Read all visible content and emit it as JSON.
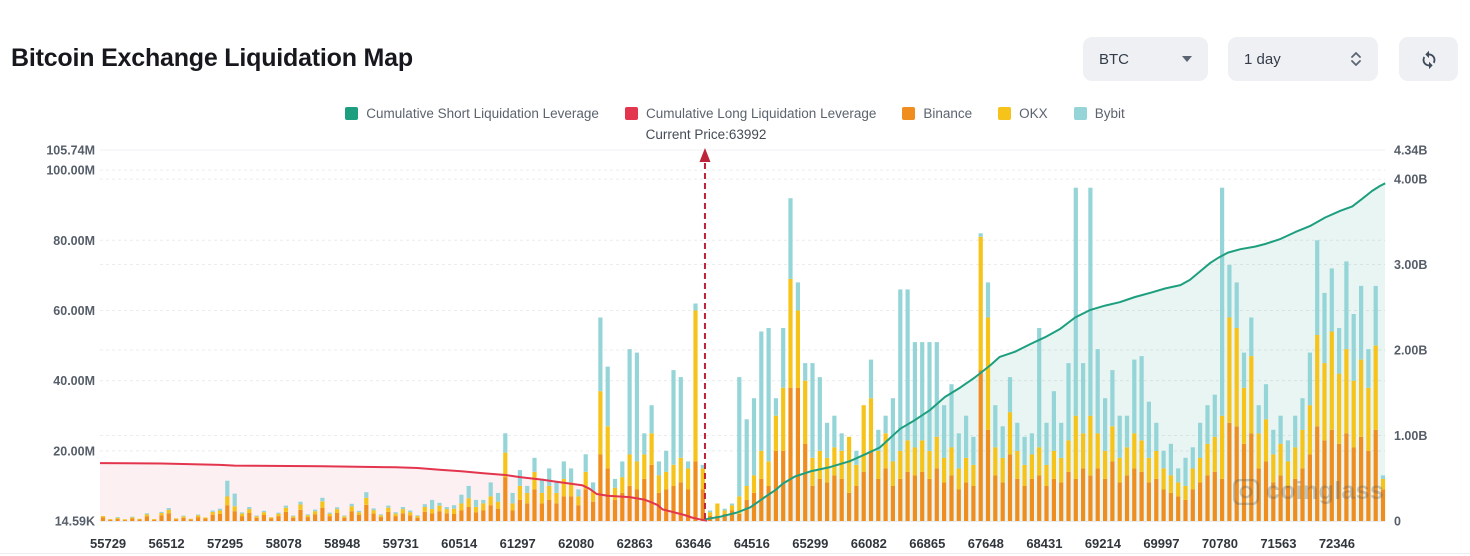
{
  "header": {
    "title": "Bitcoin Exchange Liquidation Map",
    "symbol_select": {
      "value": "BTC"
    },
    "interval_select": {
      "value": "1 day"
    }
  },
  "watermark": {
    "text": "coinglass"
  },
  "chart_data": {
    "type": "bar",
    "subtype": "stacked-bars-with-cumulative-lines",
    "title": "Bitcoin Exchange Liquidation Map",
    "annotation": {
      "label": "Current Price:63992",
      "price": 63992,
      "x_index": 82.3
    },
    "legend_position": "top-center",
    "grid": "horizontal-dashed",
    "x_categories": [
      "55729",
      "56512",
      "57295",
      "58078",
      "58948",
      "59731",
      "60514",
      "61297",
      "62080",
      "62863",
      "63646",
      "64516",
      "65299",
      "66082",
      "66865",
      "67648",
      "68431",
      "69214",
      "69997",
      "70780",
      "71563",
      "72346"
    ],
    "bars_per_category": 8,
    "left_axis": {
      "unit": "M",
      "max_value": 105.74,
      "min_label": "14.59K",
      "ticks": [
        {
          "label": "105.74M",
          "value": 105.74
        },
        {
          "label": "100.00M",
          "value": 100
        },
        {
          "label": "80.00M",
          "value": 80
        },
        {
          "label": "60.00M",
          "value": 60
        },
        {
          "label": "40.00M",
          "value": 40
        },
        {
          "label": "20.00M",
          "value": 20
        },
        {
          "label": "14.59K",
          "value": 0.0146
        }
      ],
      "grid_values": [
        100,
        80,
        60,
        40,
        20
      ]
    },
    "right_axis": {
      "unit": "B",
      "max_value": 4.34,
      "ticks": [
        {
          "label": "4.34B",
          "value": 4.34
        },
        {
          "label": "4.00B",
          "value": 4
        },
        {
          "label": "3.00B",
          "value": 3
        },
        {
          "label": "2.00B",
          "value": 2
        },
        {
          "label": "1.00B",
          "value": 1
        },
        {
          "label": "0",
          "value": 0
        }
      ],
      "grid_values": [
        4,
        3,
        2,
        1
      ]
    },
    "series": [
      {
        "name": "Cumulative Short Liquidation Leverage",
        "type": "line",
        "axis": "right",
        "color": "#1d9f7f",
        "area_color": "rgba(29,159,127,0.10)",
        "points": [
          [
            82.3,
            0.02
          ],
          [
            84.4,
            0.05
          ],
          [
            86.7,
            0.1
          ],
          [
            88.5,
            0.16
          ],
          [
            90.5,
            0.28
          ],
          [
            91.9,
            0.36
          ],
          [
            93.0,
            0.44
          ],
          [
            94.6,
            0.52
          ],
          [
            96.7,
            0.58
          ],
          [
            99.4,
            0.63
          ],
          [
            102.1,
            0.7
          ],
          [
            104.2,
            0.78
          ],
          [
            106.2,
            0.86
          ],
          [
            109.0,
            1.08
          ],
          [
            111.0,
            1.18
          ],
          [
            113.1,
            1.3
          ],
          [
            115.1,
            1.45
          ],
          [
            117.2,
            1.56
          ],
          [
            119.2,
            1.68
          ],
          [
            121.3,
            1.82
          ],
          [
            122.6,
            1.92
          ],
          [
            124.7,
            1.98
          ],
          [
            126.8,
            2.07
          ],
          [
            128.8,
            2.15
          ],
          [
            130.9,
            2.25
          ],
          [
            132.9,
            2.38
          ],
          [
            135.0,
            2.47
          ],
          [
            137.0,
            2.52
          ],
          [
            139.0,
            2.56
          ],
          [
            141.1,
            2.62
          ],
          [
            143.2,
            2.67
          ],
          [
            145.2,
            2.72
          ],
          [
            147.3,
            2.76
          ],
          [
            148.6,
            2.82
          ],
          [
            150.0,
            2.92
          ],
          [
            151.4,
            3.02
          ],
          [
            152.5,
            3.08
          ],
          [
            153.8,
            3.14
          ],
          [
            155.5,
            3.18
          ],
          [
            157.5,
            3.21
          ],
          [
            158.9,
            3.24
          ],
          [
            161.0,
            3.3
          ],
          [
            163.0,
            3.38
          ],
          [
            165.0,
            3.45
          ],
          [
            167.1,
            3.55
          ],
          [
            169.2,
            3.63
          ],
          [
            170.8,
            3.68
          ],
          [
            172.3,
            3.78
          ],
          [
            173.5,
            3.86
          ],
          [
            174.6,
            3.92
          ],
          [
            175.3,
            3.95
          ]
        ]
      },
      {
        "name": "Cumulative Long Liquidation Leverage",
        "type": "line",
        "axis": "left",
        "color": "#e3354d",
        "area_color": "rgba(227,53,77,0.075)",
        "points": [
          [
            0,
            16.5
          ],
          [
            8,
            16.4
          ],
          [
            16,
            16.0
          ],
          [
            18,
            15.8
          ],
          [
            30,
            15.6
          ],
          [
            40,
            15.3
          ],
          [
            43,
            15.1
          ],
          [
            46,
            14.6
          ],
          [
            49,
            14.2
          ],
          [
            52,
            13.6
          ],
          [
            55,
            13.1
          ],
          [
            57,
            12.5
          ],
          [
            60,
            11.8
          ],
          [
            62,
            11.2
          ],
          [
            64,
            10.6
          ],
          [
            65.5,
            10.2
          ],
          [
            66.5,
            9.2
          ],
          [
            67.5,
            7.7
          ],
          [
            69,
            7.2
          ],
          [
            72,
            6.8
          ],
          [
            74,
            6.1
          ],
          [
            75,
            5.3
          ],
          [
            75.8,
            4.6
          ],
          [
            76.5,
            3.3
          ],
          [
            78,
            2.5
          ],
          [
            79.5,
            1.7
          ],
          [
            80.5,
            1.0
          ],
          [
            81.5,
            0.5
          ],
          [
            82.6,
            0.08
          ]
        ]
      },
      {
        "name": "Binance",
        "type": "bar",
        "axis": "left",
        "color": "#ef8e1f",
        "values": [
          1.0,
          0.3,
          0.6,
          0.25,
          0.7,
          0.4,
          1.3,
          0.35,
          1.6,
          2.2,
          0.5,
          0.9,
          0.4,
          1.1,
          0.7,
          1.8,
          2.0,
          4.5,
          2.8,
          1.4,
          2.3,
          0.9,
          1.7,
          0.7,
          1.4,
          2.6,
          0.9,
          3.2,
          1.1,
          1.9,
          3.8,
          1.4,
          2.3,
          0.9,
          2.8,
          1.7,
          4.6,
          2.1,
          1.1,
          2.6,
          1.4,
          2.2,
          1.6,
          0.9,
          2.6,
          2.2,
          2.8,
          2.2,
          2.0,
          3.0,
          4.0,
          2.5,
          3.0,
          4.5,
          3.5,
          12.5,
          3.0,
          6.0,
          5.0,
          9.0,
          5.0,
          6.0,
          5.0,
          7.0,
          7.0,
          4.5,
          9.0,
          5.5,
          19.0,
          15.0,
          6.0,
          8.0,
          10,
          9,
          12,
          16,
          8,
          9,
          10,
          11,
          9,
          17,
          9,
          1.5,
          1.5,
          2,
          3,
          2,
          6,
          8,
          12,
          10,
          20,
          20,
          38,
          38,
          22,
          10,
          12,
          11,
          13,
          12,
          8,
          10,
          14,
          20,
          12,
          15,
          10,
          12,
          14,
          13,
          14,
          12,
          15,
          11,
          13,
          9,
          11,
          10,
          43,
          26,
          13,
          11,
          19,
          12,
          10,
          12,
          13,
          10,
          12,
          11,
          14,
          12,
          15,
          13,
          15,
          12,
          17,
          11,
          13,
          15,
          14,
          11,
          12,
          9,
          8,
          7,
          6,
          9,
          11,
          13,
          14,
          12,
          28,
          27,
          22,
          25,
          15,
          17,
          11,
          13,
          10,
          12,
          15,
          19,
          27,
          23,
          26,
          22,
          25,
          21,
          24,
          20,
          26,
          9
        ]
      },
      {
        "name": "OKX",
        "type": "bar",
        "axis": "left",
        "color": "#f6c31a",
        "values": [
          0.4,
          0.15,
          0.3,
          0.1,
          0.3,
          0.2,
          0.6,
          0.15,
          0.7,
          1.0,
          0.25,
          0.4,
          0.2,
          0.5,
          0.3,
          0.8,
          1.0,
          2.5,
          1.4,
          0.7,
          1.1,
          0.45,
          0.8,
          0.35,
          0.7,
          1.2,
          0.45,
          1.5,
          0.55,
          0.9,
          1.8,
          0.7,
          1.1,
          0.45,
          1.4,
          0.8,
          2.0,
          1.0,
          0.55,
          1.2,
          0.7,
          1.2,
          0.9,
          0.5,
          1.4,
          1.2,
          1.6,
          1.2,
          1.5,
          2.0,
          2.5,
          1.5,
          2.0,
          2.5,
          2.0,
          7.0,
          2.0,
          4.0,
          3.0,
          5.0,
          3.0,
          4.0,
          3.0,
          5.0,
          4.0,
          2.5,
          5.0,
          3.0,
          18.0,
          12.0,
          3.5,
          4.5,
          9,
          8,
          7,
          9,
          5,
          5,
          6,
          7,
          6,
          43,
          6,
          1,
          3.5,
          1,
          1.5,
          5,
          4,
          5,
          8,
          7,
          10,
          18,
          31,
          22,
          18,
          8,
          8,
          7,
          8,
          8,
          16,
          6,
          19,
          15,
          8,
          10,
          7,
          8,
          9,
          8,
          9,
          8,
          9,
          7,
          8,
          6,
          7,
          6,
          38,
          32,
          8,
          7,
          12,
          8,
          6,
          7,
          8,
          6,
          8,
          7,
          9,
          18,
          10,
          17,
          10,
          8,
          10,
          7,
          8,
          10,
          9,
          7,
          8,
          6,
          5,
          4,
          4,
          6,
          7,
          9,
          10,
          18,
          30,
          28,
          16,
          22,
          10,
          12,
          8,
          9,
          7,
          9,
          11,
          14,
          26,
          22,
          28,
          20,
          24,
          19,
          22,
          18,
          24,
          3
        ]
      },
      {
        "name": "Bybit",
        "type": "bar",
        "axis": "left",
        "color": "#95d5d8",
        "values": [
          0,
          0,
          0.15,
          0,
          0.15,
          0,
          0.3,
          0,
          0.3,
          0.5,
          0,
          0.2,
          0,
          0.25,
          0,
          0.4,
          0.5,
          4.5,
          3.6,
          0.35,
          0.6,
          0.2,
          0.4,
          0,
          0.3,
          0.6,
          0.2,
          0.8,
          0.25,
          0.45,
          1.0,
          0.3,
          0.5,
          0.2,
          0.7,
          0.4,
          1.6,
          0.5,
          0.25,
          0.6,
          0.4,
          0.6,
          0.5,
          0.2,
          0.8,
          2.6,
          0.8,
          0.6,
          1.0,
          2.5,
          3.5,
          2.0,
          1.0,
          4.0,
          2.5,
          5.5,
          3.0,
          4.5,
          2.0,
          4.0,
          4.0,
          5.0,
          3.0,
          5.0,
          4.0,
          2.0,
          5.0,
          2.5,
          21.0,
          17.0,
          2.5,
          4.5,
          30,
          31,
          6,
          8,
          4,
          6,
          27,
          23,
          2,
          2,
          1,
          0.5,
          0,
          0.5,
          0.5,
          34,
          19,
          22,
          34,
          38,
          5,
          17,
          23,
          8,
          5,
          27,
          21,
          10,
          9,
          5,
          0,
          4,
          0,
          11,
          6,
          5,
          18,
          46,
          43,
          30,
          28,
          31,
          27,
          15,
          18,
          10,
          12,
          8,
          1,
          10,
          12,
          9,
          10,
          8,
          8,
          6,
          34,
          12,
          17,
          10,
          22,
          65,
          20,
          65,
          24,
          15,
          16,
          12,
          9,
          21,
          24,
          16,
          8,
          5,
          9,
          4,
          8,
          6,
          10,
          11,
          12,
          65,
          15,
          13,
          10,
          11,
          8,
          10,
          7,
          8,
          6,
          9,
          9,
          15,
          27,
          20,
          18,
          13,
          25,
          19,
          21,
          11,
          17,
          1
        ]
      }
    ]
  }
}
